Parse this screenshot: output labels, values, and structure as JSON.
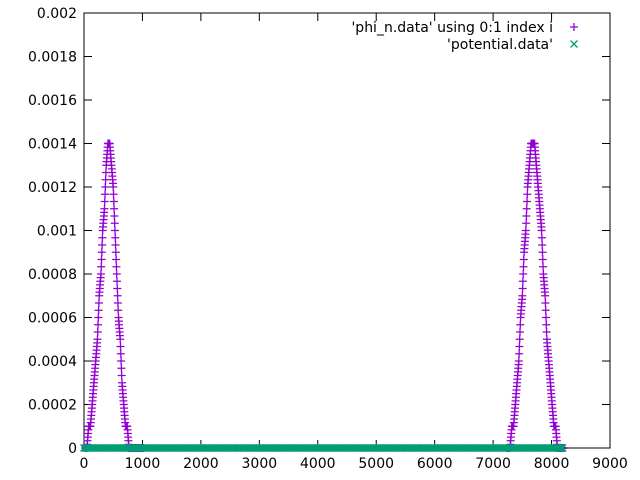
{
  "chart_data": {
    "type": "scatter",
    "title": "",
    "xlabel": "",
    "ylabel": "",
    "xlim": [
      0,
      9000
    ],
    "ylim": [
      0,
      0.002
    ],
    "x_ticks": [
      0,
      1000,
      2000,
      3000,
      4000,
      5000,
      6000,
      7000,
      8000,
      9000
    ],
    "x_tick_labels": [
      "0",
      "1000",
      "2000",
      "3000",
      "4000",
      "5000",
      "6000",
      "7000",
      "8000",
      "9000"
    ],
    "y_ticks": [
      0,
      0.0002,
      0.0004,
      0.0006,
      0.0008,
      0.001,
      0.0012,
      0.0014,
      0.0016,
      0.0018,
      0.002
    ],
    "y_tick_labels": [
      "0",
      "0.0002",
      "0.0004",
      "0.0006",
      "0.0008",
      "0.001",
      "0.0012",
      "0.0014",
      "0.0016",
      "0.0018",
      "0.002"
    ],
    "grid": false,
    "legend_position": "top-right",
    "series": [
      {
        "name": "'phi_n.data' using 0:1 index i",
        "marker": "plus",
        "color": "#9400d3",
        "x": [
          20,
          50,
          80,
          110,
          140,
          170,
          200,
          230,
          260,
          290,
          320,
          350,
          380,
          410,
          440,
          470,
          500,
          530,
          560,
          590,
          620,
          650,
          680,
          710,
          740,
          770,
          800,
          830,
          860,
          890,
          920,
          950,
          980,
          1010,
          7230,
          7260,
          7290,
          7320,
          7350,
          7380,
          7410,
          7440,
          7470,
          7500,
          7530,
          7560,
          7590,
          7620,
          7650,
          7680,
          7710,
          7740,
          7770,
          7800,
          7830,
          7860,
          7890,
          7920,
          7950,
          7980,
          8010,
          8040,
          8070,
          8100,
          8130,
          8160,
          8190,
          8210
        ],
        "y": [
          0.0,
          0.0,
          0.0001,
          0.0001,
          0.0002,
          0.0003,
          0.0004,
          0.0005,
          0.0007,
          0.0008,
          0.001,
          0.0011,
          0.0013,
          0.0014,
          0.0014,
          0.0013,
          0.0012,
          0.001,
          0.0008,
          0.0006,
          0.0005,
          0.0003,
          0.0002,
          0.0001,
          0.0001,
          0.0,
          0.0,
          0.0,
          0.0,
          0.0,
          0.0,
          0.0,
          0.0,
          0.0,
          0.0,
          0.0,
          0.0,
          0.0001,
          0.0001,
          0.0002,
          0.0003,
          0.0004,
          0.0006,
          0.0007,
          0.0009,
          0.001,
          0.0012,
          0.0013,
          0.0014,
          0.0014,
          0.0014,
          0.0013,
          0.0012,
          0.0011,
          0.001,
          0.0008,
          0.0007,
          0.0005,
          0.0004,
          0.0003,
          0.0002,
          0.0001,
          0.0001,
          0.0,
          0.0,
          0.0,
          0.0,
          0.0
        ]
      },
      {
        "name": "'potential.data'",
        "marker": "cross",
        "color": "#009e73",
        "x": [
          0,
          150,
          300,
          450,
          600,
          750,
          900,
          1050,
          1200,
          1350,
          1500,
          1650,
          1800,
          1950,
          2100,
          2250,
          2400,
          2550,
          2700,
          2850,
          3000,
          3150,
          3300,
          3450,
          3600,
          3750,
          3900,
          4050,
          4200,
          4350,
          4500,
          4650,
          4800,
          4950,
          5100,
          5250,
          5400,
          5550,
          5700,
          5850,
          6000,
          6150,
          6300,
          6450,
          6600,
          6750,
          6900,
          7050,
          7200,
          7350,
          7500,
          7650,
          7800,
          7950,
          8100,
          8190
        ],
        "y": [
          0,
          0,
          0,
          0,
          0,
          0,
          0,
          0,
          0,
          0,
          0,
          0,
          0,
          0,
          0,
          0,
          0,
          0,
          0,
          0,
          0,
          0,
          0,
          0,
          0,
          0,
          0,
          0,
          0,
          0,
          0,
          0,
          0,
          0,
          0,
          0,
          0,
          0,
          0,
          0,
          0,
          0,
          0,
          0,
          0,
          0,
          0,
          0,
          0,
          0,
          0,
          0,
          0,
          0,
          0,
          0
        ]
      }
    ]
  }
}
